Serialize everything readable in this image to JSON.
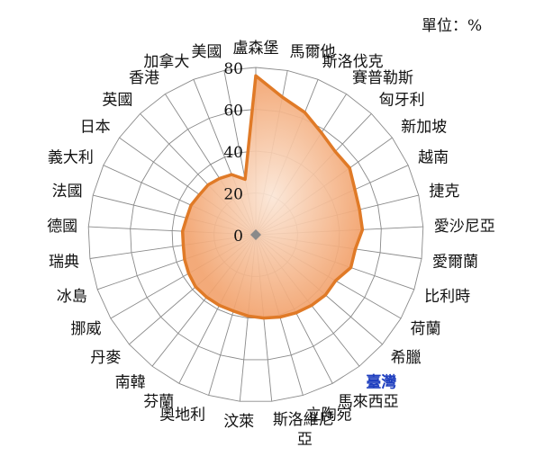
{
  "unit_label": "單位：%",
  "colors": {
    "series_line": "#E07A27",
    "series_fill_inner": "#FBE6D6",
    "series_fill_outer": "#F2A36E",
    "grid": "#8a8a8a",
    "label": "#111111",
    "highlight_label": "#1F3FBF"
  },
  "chart_data": {
    "type": "radar",
    "title": "",
    "unit": "單位：%",
    "rmax": 80,
    "ticks": [
      0,
      20,
      40,
      60,
      80
    ],
    "grid": true,
    "highlight_category": "臺灣",
    "categories": [
      "盧森堡",
      "馬爾他",
      "斯洛伐克",
      "賽普勒斯",
      "匈牙利",
      "新加坡",
      "越南",
      "捷克",
      "愛沙尼亞",
      "愛爾蘭",
      "比利時",
      "荷蘭",
      "希臘",
      "臺灣",
      "馬來西亞",
      "立陶宛",
      "斯洛維尼亞",
      "汶萊",
      "奧地利",
      "芬蘭",
      "南韓",
      "丹麥",
      "挪威",
      "冰島",
      "瑞典",
      "德國",
      "法國",
      "義大利",
      "日本",
      "英國",
      "香港",
      "加拿大",
      "美國"
    ],
    "series": [
      {
        "values": [
          76,
          67,
          63,
          58,
          55,
          55,
          52,
          51,
          51,
          48,
          48,
          44,
          44,
          43,
          42,
          41,
          40,
          39,
          38,
          38,
          38,
          38,
          37,
          36,
          35,
          35,
          34,
          34,
          33,
          33,
          32,
          31,
          27
        ]
      }
    ]
  }
}
